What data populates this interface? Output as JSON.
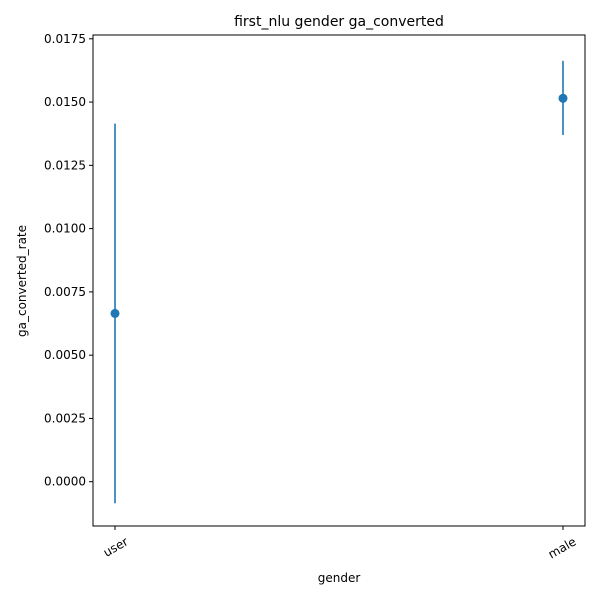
{
  "chart_data": {
    "type": "scatter",
    "title": "first_nlu gender ga_converted",
    "xlabel": "gender",
    "ylabel": "ga_converted_rate",
    "categories": [
      "user",
      "male"
    ],
    "series": [
      {
        "name": "ga_converted_rate",
        "values": [
          0.00665,
          0.01515
        ],
        "error_low": [
          -0.00085,
          0.0137
        ],
        "error_high": [
          0.01415,
          0.01663
        ]
      }
    ],
    "yticks": [
      "0.0000",
      "0.0025",
      "0.0050",
      "0.0075",
      "0.0100",
      "0.0125",
      "0.0150",
      "0.0175"
    ],
    "ylim": [
      -0.00175,
      0.01765
    ],
    "grid": false,
    "legend": "none",
    "colors": {
      "series": "#1f77b4",
      "axis": "#000000",
      "background": "#ffffff"
    }
  }
}
